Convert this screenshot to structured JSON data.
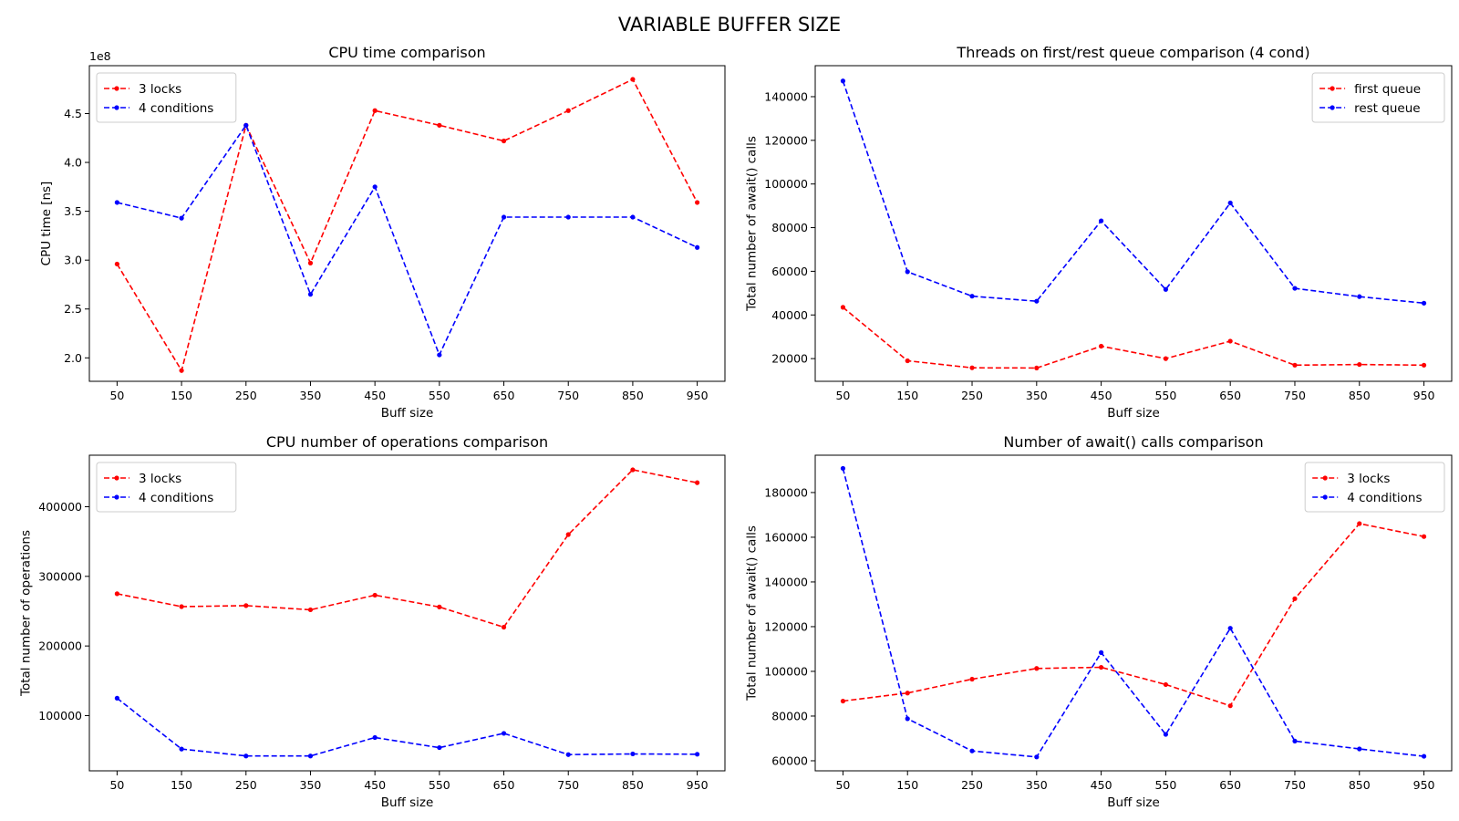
{
  "figure": {
    "title": "VARIABLE BUFFER SIZE"
  },
  "chart_data": [
    {
      "type": "line",
      "title": "CPU time comparison",
      "xlabel": "Buff size",
      "ylabel": "CPU time [ns]",
      "offset_text": "1e8",
      "x": [
        50,
        150,
        250,
        350,
        450,
        550,
        650,
        750,
        850,
        950
      ],
      "xlim": [
        7,
        993
      ],
      "ylim": [
        1.76,
        4.99
      ],
      "yticks": [
        2.0,
        2.5,
        3.0,
        3.5,
        4.0,
        4.5
      ],
      "ytick_labels": [
        "2.0",
        "2.5",
        "3.0",
        "3.5",
        "4.0",
        "4.5"
      ],
      "legend_position": "upper-left",
      "series": [
        {
          "name": "3 locks",
          "color": "#ff0000",
          "values": [
            2.96,
            1.87,
            4.38,
            2.97,
            4.53,
            4.38,
            4.22,
            4.53,
            4.85,
            3.59
          ]
        },
        {
          "name": "4 conditions",
          "color": "#0000ff",
          "values": [
            3.59,
            3.43,
            4.38,
            2.65,
            3.75,
            2.03,
            3.44,
            3.44,
            3.44,
            3.13
          ]
        }
      ]
    },
    {
      "type": "line",
      "title": "Threads on first/rest queue comparison (4 cond)",
      "xlabel": "Buff size",
      "ylabel": "Total number of await() calls",
      "x": [
        50,
        150,
        250,
        350,
        450,
        550,
        650,
        750,
        850,
        950
      ],
      "xlim": [
        7,
        993
      ],
      "ylim": [
        9600,
        154200
      ],
      "yticks": [
        20000,
        40000,
        60000,
        80000,
        100000,
        120000,
        140000
      ],
      "ytick_labels": [
        "20000",
        "40000",
        "60000",
        "80000",
        "100000",
        "120000",
        "140000"
      ],
      "legend_position": "upper-right",
      "series": [
        {
          "name": "first queue",
          "color": "#ff0000",
          "values": [
            43500,
            19000,
            15800,
            15700,
            25700,
            20000,
            28000,
            17000,
            17300,
            17000
          ]
        },
        {
          "name": "rest queue",
          "color": "#0000ff",
          "values": [
            147200,
            59800,
            48600,
            46300,
            83100,
            51700,
            91300,
            52200,
            48400,
            45400
          ]
        }
      ]
    },
    {
      "type": "line",
      "title": "CPU number of operations comparison",
      "xlabel": "Buff size",
      "ylabel": "Total number of operations",
      "x": [
        50,
        150,
        250,
        350,
        450,
        550,
        650,
        750,
        850,
        950
      ],
      "xlim": [
        7,
        993
      ],
      "ylim": [
        20700,
        474000
      ],
      "yticks": [
        100000,
        200000,
        300000,
        400000
      ],
      "ytick_labels": [
        "100000",
        "200000",
        "300000",
        "400000"
      ],
      "legend_position": "upper-left",
      "series": [
        {
          "name": "3 locks",
          "color": "#ff0000",
          "values": [
            275000,
            256500,
            258000,
            252000,
            273000,
            256000,
            227000,
            360000,
            453000,
            434500
          ]
        },
        {
          "name": "4 conditions",
          "color": "#0000ff",
          "values": [
            125000,
            52000,
            42000,
            42000,
            68500,
            54000,
            74500,
            44000,
            45000,
            44500
          ]
        }
      ]
    },
    {
      "type": "line",
      "title": "Number of await() calls comparison",
      "xlabel": "Buff size",
      "ylabel": "Total number of await() calls",
      "x": [
        50,
        150,
        250,
        350,
        450,
        550,
        650,
        750,
        850,
        950
      ],
      "xlim": [
        7,
        993
      ],
      "ylim": [
        55500,
        196700
      ],
      "yticks": [
        60000,
        80000,
        100000,
        120000,
        140000,
        160000,
        180000
      ],
      "ytick_labels": [
        "60000",
        "80000",
        "100000",
        "120000",
        "140000",
        "160000",
        "180000"
      ],
      "legend_position": "upper-right",
      "series": [
        {
          "name": "3 locks",
          "color": "#ff0000",
          "values": [
            86700,
            90300,
            96500,
            101300,
            101800,
            94100,
            84600,
            132500,
            166100,
            160300
          ]
        },
        {
          "name": "4 conditions",
          "color": "#0000ff",
          "values": [
            190800,
            78800,
            64400,
            61700,
            108400,
            71800,
            119300,
            68800,
            65300,
            62000
          ]
        }
      ]
    }
  ]
}
